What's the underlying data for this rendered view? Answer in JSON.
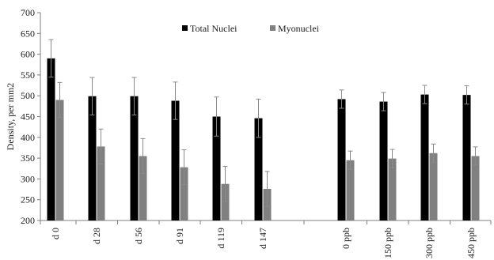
{
  "chart_data": {
    "type": "bar",
    "title": "",
    "xlabel": "",
    "ylabel": "Density, per mm2",
    "ylim": [
      200,
      700
    ],
    "yticks": [
      200,
      250,
      300,
      350,
      400,
      450,
      500,
      550,
      600,
      650,
      700
    ],
    "grid": false,
    "legend_position": "top-center",
    "categories": [
      "d 0",
      "d 28",
      "d 56",
      "d 91",
      "d 119",
      "d 147",
      "0 ppb",
      "150 ppb",
      "300 ppb",
      "450 ppb"
    ],
    "series": [
      {
        "name": "Total Nuclei",
        "color": "#000000",
        "values": [
          590,
          499,
          499,
          488,
          450,
          446,
          492,
          486,
          503,
          502
        ],
        "error": [
          45,
          45,
          45,
          45,
          47,
          46,
          22,
          22,
          22,
          22
        ]
      },
      {
        "name": "Myonuclei",
        "color": "#808080",
        "values": [
          490,
          378,
          355,
          328,
          288,
          276,
          345,
          349,
          362,
          355
        ],
        "error": [
          42,
          42,
          42,
          42,
          42,
          42,
          22,
          22,
          22,
          22
        ]
      }
    ]
  }
}
